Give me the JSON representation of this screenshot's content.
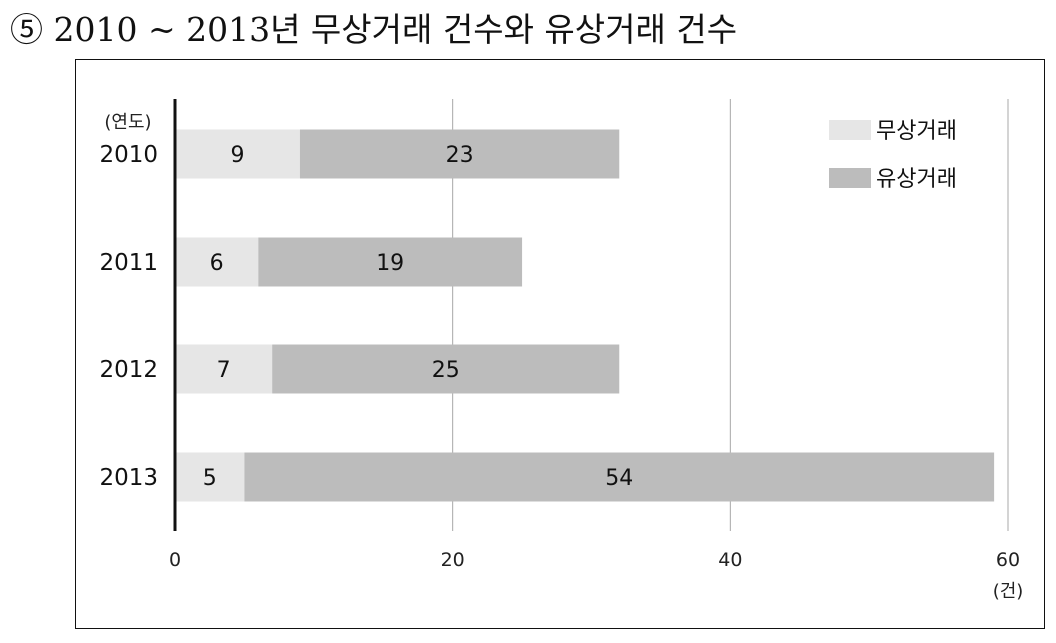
{
  "title": "⑤ 2010 ~ 2013년 무상거래 건수와 유상거래 건수",
  "chart_data": {
    "type": "bar",
    "orientation": "horizontal",
    "stacked": true,
    "title": "⑤ 2010 ~ 2013년 무상거래 건수와 유상거래 건수",
    "categories": [
      "2010",
      "2011",
      "2012",
      "2013"
    ],
    "category_unit_label": "(연도)",
    "x_unit_label": "(건)",
    "xlim": [
      0,
      60
    ],
    "x_ticks": [
      0,
      20,
      40,
      60
    ],
    "grid": true,
    "legend_position": "top-right",
    "series": [
      {
        "name": "무상거래",
        "values": [
          9,
          6,
          7,
          5
        ],
        "color": "#e6e6e6"
      },
      {
        "name": "유상거래",
        "values": [
          23,
          19,
          25,
          54
        ],
        "color": "#bcbcbc"
      }
    ]
  }
}
